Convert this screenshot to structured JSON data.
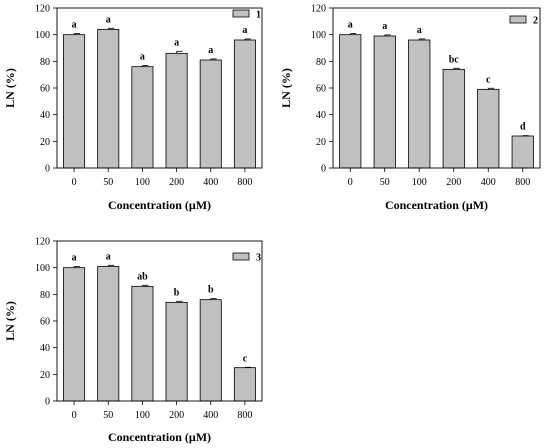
{
  "chart_data": [
    {
      "type": "bar",
      "legend": "1",
      "categories": [
        "0",
        "50",
        "100",
        "200",
        "400",
        "800"
      ],
      "values": [
        100,
        104,
        76,
        86,
        81,
        96
      ],
      "errors": [
        0.8,
        0.8,
        0.8,
        1.5,
        0.8,
        0.8
      ],
      "labels": [
        "a",
        "a",
        "a",
        "a",
        "a",
        "a"
      ],
      "xlabel": "Concentration (μM)",
      "ylabel": "LN (%)",
      "ylim": [
        0,
        120
      ],
      "yticks": [
        0,
        20,
        40,
        60,
        80,
        100,
        120
      ],
      "bar_color": "#c0c0c0"
    },
    {
      "type": "bar",
      "legend": "2",
      "categories": [
        "0",
        "50",
        "100",
        "200",
        "400",
        "800"
      ],
      "values": [
        100,
        99,
        96,
        74,
        59,
        24
      ],
      "errors": [
        0.8,
        0.8,
        0.8,
        0.8,
        0.8,
        0.3
      ],
      "labels": [
        "a",
        "a",
        "a",
        "bc",
        "c",
        "d"
      ],
      "xlabel": "Concentration (μM)",
      "ylabel": "LN (%)",
      "ylim": [
        0,
        120
      ],
      "yticks": [
        0,
        20,
        40,
        60,
        80,
        100,
        120
      ],
      "bar_color": "#c0c0c0"
    },
    {
      "type": "bar",
      "legend": "3",
      "categories": [
        "0",
        "50",
        "100",
        "200",
        "400",
        "800"
      ],
      "values": [
        100,
        101,
        86,
        74,
        76,
        25
      ],
      "errors": [
        0.8,
        0.8,
        0.8,
        0.8,
        0.8,
        0.3
      ],
      "labels": [
        "a",
        "a",
        "ab",
        "b",
        "b",
        "c"
      ],
      "xlabel": "Concentration (μM)",
      "ylabel": "LN (%)",
      "ylim": [
        0,
        120
      ],
      "yticks": [
        0,
        20,
        40,
        60,
        80,
        100,
        120
      ],
      "bar_color": "#c0c0c0"
    }
  ]
}
